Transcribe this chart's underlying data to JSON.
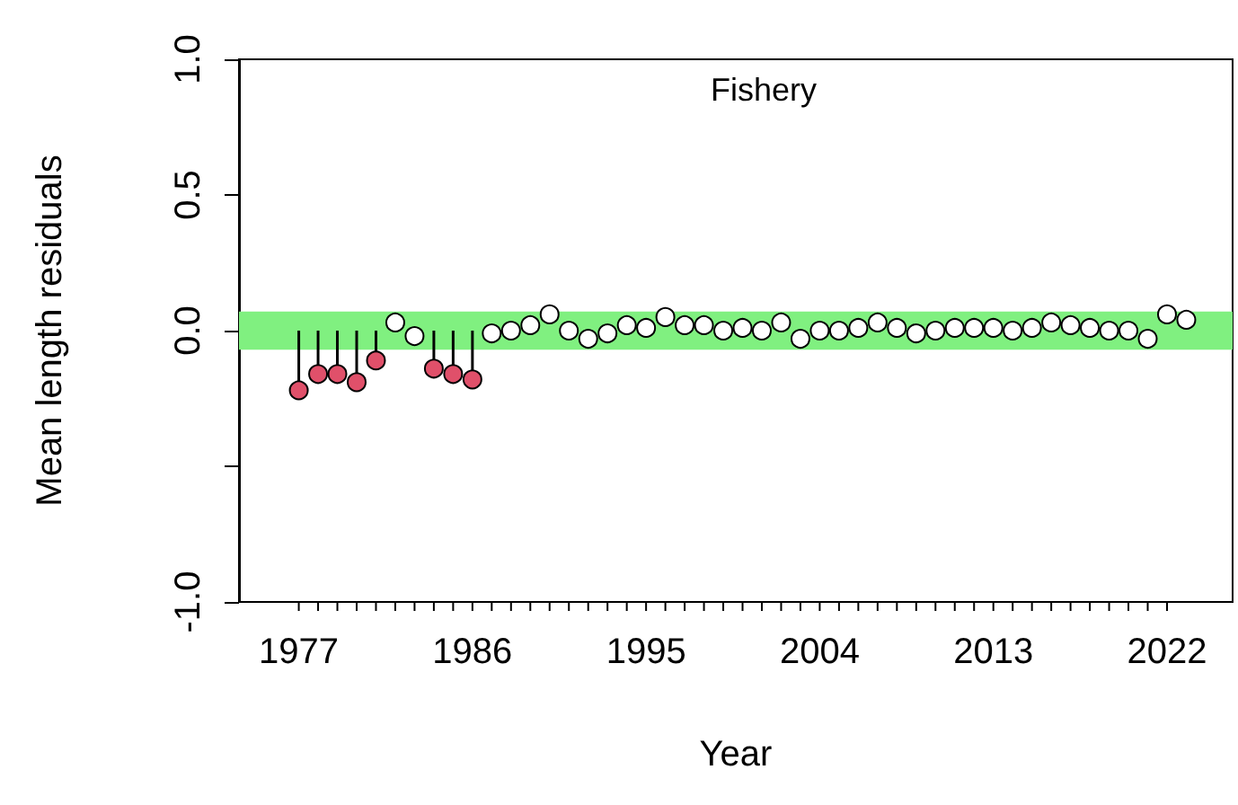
{
  "chart_data": {
    "type": "scatter",
    "title": "Fishery",
    "xlabel": "Year",
    "ylabel": "Mean length residuals",
    "x": [
      1977,
      1978,
      1979,
      1980,
      1981,
      1982,
      1983,
      1984,
      1985,
      1986,
      1987,
      1988,
      1989,
      1990,
      1991,
      1992,
      1993,
      1994,
      1995,
      1996,
      1997,
      1998,
      1999,
      2000,
      2001,
      2002,
      2003,
      2004,
      2005,
      2006,
      2007,
      2008,
      2009,
      2010,
      2011,
      2012,
      2013,
      2014,
      2015,
      2016,
      2017,
      2018,
      2019,
      2020,
      2021,
      2022,
      2023
    ],
    "series": [
      {
        "color": "#ffffff",
        "values": [
          null,
          null,
          null,
          null,
          null,
          0.03,
          -0.02,
          null,
          null,
          null,
          -0.01,
          0.0,
          0.02,
          0.06,
          0.0,
          -0.03,
          -0.01,
          0.02,
          0.01,
          0.05,
          0.02,
          0.02,
          0.0,
          0.01,
          0.0,
          0.03,
          -0.03,
          0.0,
          0.0,
          0.01,
          0.03,
          0.01,
          -0.01,
          0.0,
          0.01,
          0.01,
          0.01,
          0.0,
          0.01,
          0.03,
          0.02,
          0.01,
          0.0,
          0.0,
          -0.03,
          0.06,
          0.04
        ]
      },
      {
        "type": "lollipop",
        "color": "#e0506a",
        "values": [
          -0.22,
          -0.16,
          -0.16,
          -0.19,
          -0.11,
          null,
          null,
          -0.14,
          -0.16,
          -0.18,
          null,
          null,
          null,
          null,
          null,
          null,
          null,
          null,
          null,
          null,
          null,
          null,
          null,
          null,
          null,
          null,
          null,
          null,
          null,
          null,
          null,
          null,
          null,
          null,
          null,
          null,
          null,
          null,
          null,
          null,
          null,
          null,
          null,
          null,
          null,
          null,
          null
        ]
      }
    ],
    "marker": "circle",
    "bands": [
      {
        "axis": "y",
        "from": -0.07,
        "to": 0.07,
        "color": "#80f080"
      }
    ],
    "xlim": [
      1973.9,
      2025.4
    ],
    "xticks": [
      1977,
      {
        "value": 1978,
        "label": null
      },
      {
        "value": 1979,
        "label": null
      },
      {
        "value": 1980,
        "label": null
      },
      {
        "value": 1981,
        "label": null
      },
      {
        "value": 1982,
        "label": null
      },
      {
        "value": 1983,
        "label": null
      },
      {
        "value": 1984,
        "label": null
      },
      {
        "value": 1985,
        "label": null
      },
      1986,
      {
        "value": 1987,
        "label": null
      },
      {
        "value": 1988,
        "label": null
      },
      {
        "value": 1989,
        "label": null
      },
      {
        "value": 1990,
        "label": null
      },
      {
        "value": 1991,
        "label": null
      },
      {
        "value": 1992,
        "label": null
      },
      {
        "value": 1993,
        "label": null
      },
      {
        "value": 1994,
        "label": null
      },
      1995,
      {
        "value": 1996,
        "label": null
      },
      {
        "value": 1997,
        "label": null
      },
      {
        "value": 1998,
        "label": null
      },
      {
        "value": 1999,
        "label": null
      },
      {
        "value": 2000,
        "label": null
      },
      {
        "value": 2001,
        "label": null
      },
      {
        "value": 2002,
        "label": null
      },
      {
        "value": 2003,
        "label": null
      },
      2004,
      {
        "value": 2005,
        "label": null
      },
      {
        "value": 2006,
        "label": null
      },
      {
        "value": 2007,
        "label": null
      },
      {
        "value": 2008,
        "label": null
      },
      {
        "value": 2009,
        "label": null
      },
      {
        "value": 2010,
        "label": null
      },
      {
        "value": 2011,
        "label": null
      },
      {
        "value": 2012,
        "label": null
      },
      2013,
      {
        "value": 2014,
        "label": null
      },
      {
        "value": 2015,
        "label": null
      },
      {
        "value": 2016,
        "label": null
      },
      {
        "value": 2017,
        "label": null
      },
      {
        "value": 2018,
        "label": null
      },
      {
        "value": 2019,
        "label": null
      },
      {
        "value": 2020,
        "label": null
      },
      {
        "value": 2021,
        "label": null
      },
      2022
    ],
    "ylim": [
      -1,
      1
    ],
    "yticks": [
      {
        "value": -1,
        "label": "-1.0"
      },
      {
        "value": -0.5,
        "label": null
      },
      {
        "value": 0,
        "label": "0.0"
      },
      {
        "value": 0.5,
        "label": "0.5"
      },
      {
        "value": 1,
        "label": "1.0"
      }
    ]
  }
}
